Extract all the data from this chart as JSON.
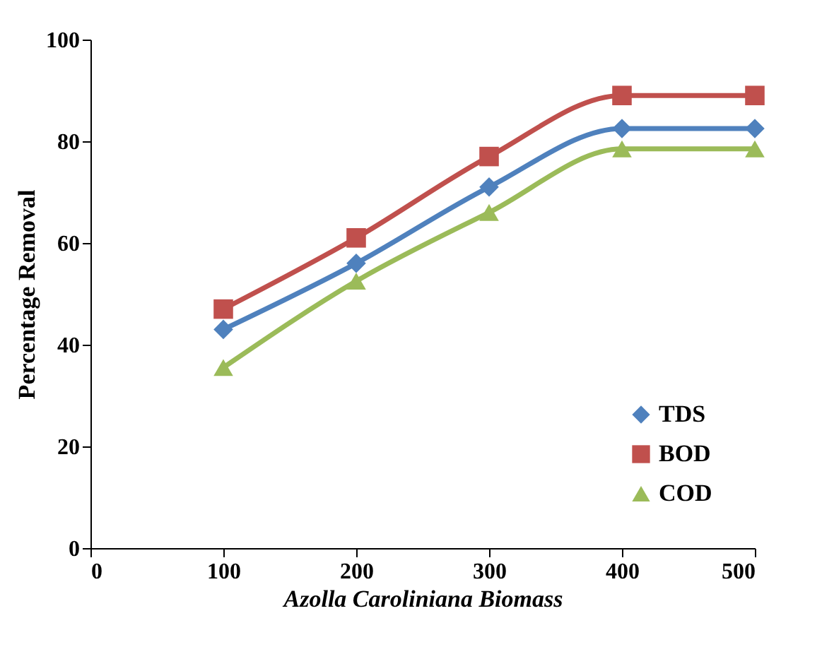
{
  "chart_data": {
    "type": "line",
    "xlabel": "Azolla Caroliniana Biomass",
    "ylabel": "Percentage Removal",
    "x": [
      100,
      200,
      300,
      400,
      500
    ],
    "series": [
      {
        "name": "TDS",
        "color": "#4f81bd",
        "marker": "diamond",
        "values": [
          43,
          56,
          71,
          82.5,
          82.5
        ]
      },
      {
        "name": "BOD",
        "color": "#c0504d",
        "marker": "square",
        "values": [
          47,
          61,
          77,
          89,
          89
        ]
      },
      {
        "name": "COD",
        "color": "#9bbb59",
        "marker": "triangle",
        "values": [
          35.5,
          52.5,
          66,
          78.5,
          78.5
        ]
      }
    ],
    "xlim": [
      0,
      500
    ],
    "xticks": [
      0,
      100,
      200,
      300,
      400,
      500
    ],
    "ylim": [
      0,
      100
    ],
    "yticks": [
      0,
      20,
      40,
      60,
      80,
      100
    ],
    "grid": false,
    "legend": "bottom right",
    "line_style": "solid"
  }
}
